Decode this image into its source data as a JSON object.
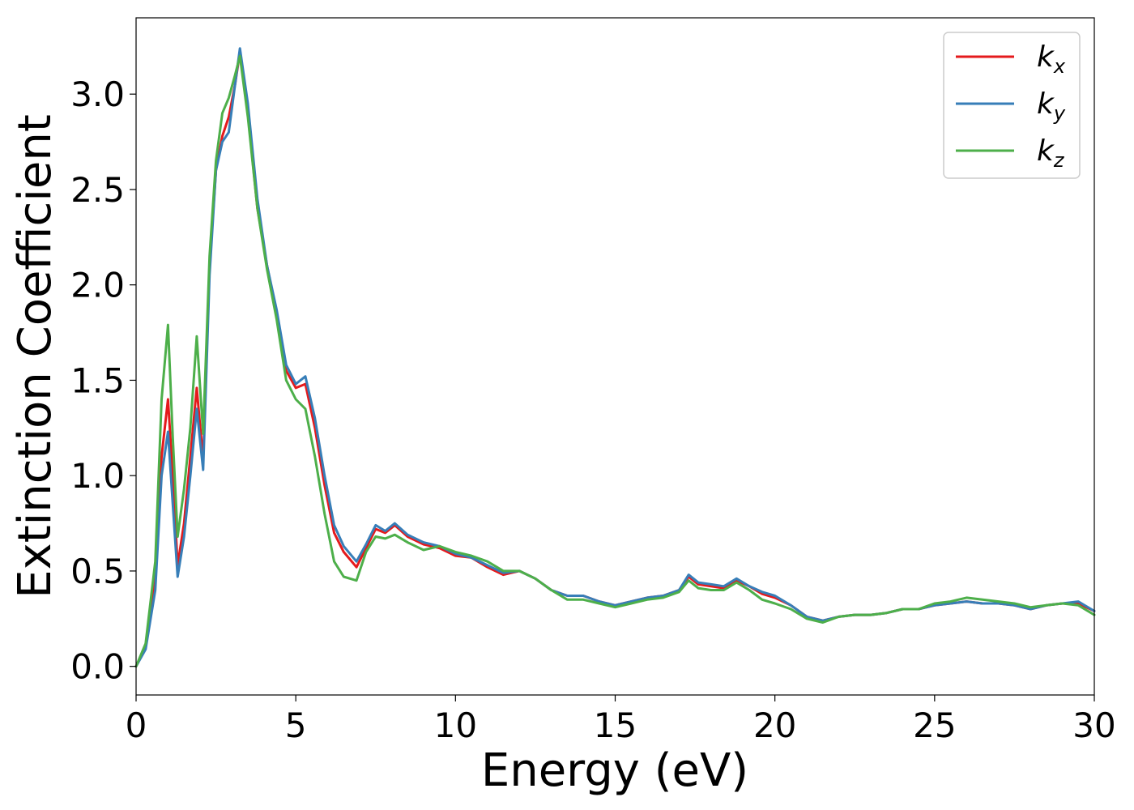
{
  "chart_data": {
    "type": "line",
    "xlabel": "Energy (eV)",
    "ylabel": "Extinction Coefficient",
    "xlim": [
      0,
      30
    ],
    "ylim": [
      -0.15,
      3.4
    ],
    "xticks": [
      0,
      5,
      10,
      15,
      20,
      25,
      30
    ],
    "xtick_labels": [
      "0",
      "5",
      "10",
      "15",
      "20",
      "25",
      "30"
    ],
    "yticks": [
      0.0,
      0.5,
      1.0,
      1.5,
      2.0,
      2.5,
      3.0
    ],
    "ytick_labels": [
      "0.0",
      "0.5",
      "1.0",
      "1.5",
      "2.0",
      "2.5",
      "3.0"
    ],
    "grid": false,
    "legend_position": "top-right",
    "x": [
      0,
      0.3,
      0.6,
      0.8,
      1.0,
      1.15,
      1.3,
      1.5,
      1.7,
      1.9,
      2.1,
      2.3,
      2.5,
      2.7,
      2.9,
      3.1,
      3.25,
      3.5,
      3.8,
      4.1,
      4.4,
      4.7,
      5.0,
      5.3,
      5.6,
      5.9,
      6.2,
      6.5,
      6.9,
      7.2,
      7.5,
      7.8,
      8.1,
      8.5,
      9.0,
      9.5,
      10.0,
      10.5,
      11.0,
      11.5,
      12.0,
      12.5,
      13.0,
      13.5,
      14.0,
      14.5,
      15.0,
      15.5,
      16.0,
      16.5,
      17.0,
      17.3,
      17.6,
      18.0,
      18.4,
      18.8,
      19.2,
      19.6,
      20.0,
      20.5,
      21.0,
      21.5,
      22.0,
      22.5,
      23.0,
      23.5,
      24.0,
      24.5,
      25.0,
      25.5,
      26.0,
      26.5,
      27.0,
      27.5,
      28.0,
      28.5,
      29.0,
      29.5,
      30.0
    ],
    "series": [
      {
        "name": "k",
        "subscript": "x",
        "color": "#e41a1c",
        "values": [
          0.0,
          0.1,
          0.45,
          1.1,
          1.4,
          1.0,
          0.53,
          0.75,
          1.1,
          1.46,
          1.08,
          2.1,
          2.6,
          2.78,
          2.88,
          3.05,
          3.22,
          2.9,
          2.4,
          2.1,
          1.85,
          1.55,
          1.46,
          1.48,
          1.25,
          0.95,
          0.7,
          0.6,
          0.52,
          0.62,
          0.72,
          0.7,
          0.74,
          0.68,
          0.64,
          0.62,
          0.58,
          0.57,
          0.52,
          0.48,
          0.5,
          0.46,
          0.4,
          0.37,
          0.37,
          0.34,
          0.32,
          0.34,
          0.36,
          0.37,
          0.4,
          0.47,
          0.43,
          0.42,
          0.41,
          0.45,
          0.42,
          0.38,
          0.36,
          0.32,
          0.26,
          0.24,
          0.26,
          0.27,
          0.27,
          0.28,
          0.3,
          0.3,
          0.32,
          0.33,
          0.34,
          0.33,
          0.33,
          0.32,
          0.3,
          0.32,
          0.33,
          0.33,
          0.29
        ]
      },
      {
        "name": "k",
        "subscript": "y",
        "color": "#377eb8",
        "values": [
          0.0,
          0.09,
          0.4,
          1.0,
          1.23,
          0.85,
          0.47,
          0.68,
          1.0,
          1.35,
          1.03,
          2.05,
          2.6,
          2.75,
          2.8,
          3.05,
          3.24,
          2.95,
          2.45,
          2.1,
          1.87,
          1.58,
          1.48,
          1.52,
          1.3,
          1.0,
          0.74,
          0.63,
          0.55,
          0.64,
          0.74,
          0.71,
          0.75,
          0.69,
          0.65,
          0.63,
          0.59,
          0.57,
          0.53,
          0.49,
          0.5,
          0.46,
          0.4,
          0.37,
          0.37,
          0.34,
          0.32,
          0.34,
          0.36,
          0.37,
          0.4,
          0.48,
          0.44,
          0.43,
          0.42,
          0.46,
          0.42,
          0.39,
          0.37,
          0.32,
          0.26,
          0.24,
          0.26,
          0.27,
          0.27,
          0.28,
          0.3,
          0.3,
          0.32,
          0.33,
          0.34,
          0.33,
          0.33,
          0.32,
          0.3,
          0.32,
          0.33,
          0.34,
          0.29
        ]
      },
      {
        "name": "k",
        "subscript": "z",
        "color": "#4daf4a",
        "values": [
          0.0,
          0.12,
          0.55,
          1.4,
          1.79,
          1.2,
          0.68,
          0.93,
          1.25,
          1.73,
          1.22,
          2.15,
          2.65,
          2.9,
          2.98,
          3.1,
          3.2,
          2.88,
          2.4,
          2.08,
          1.82,
          1.5,
          1.4,
          1.35,
          1.1,
          0.8,
          0.55,
          0.47,
          0.45,
          0.6,
          0.68,
          0.67,
          0.69,
          0.65,
          0.61,
          0.63,
          0.6,
          0.58,
          0.55,
          0.5,
          0.5,
          0.46,
          0.4,
          0.35,
          0.35,
          0.33,
          0.31,
          0.33,
          0.35,
          0.36,
          0.39,
          0.45,
          0.41,
          0.4,
          0.4,
          0.44,
          0.4,
          0.35,
          0.33,
          0.3,
          0.25,
          0.23,
          0.26,
          0.27,
          0.27,
          0.28,
          0.3,
          0.3,
          0.33,
          0.34,
          0.36,
          0.35,
          0.34,
          0.33,
          0.31,
          0.32,
          0.33,
          0.32,
          0.27
        ]
      }
    ]
  }
}
